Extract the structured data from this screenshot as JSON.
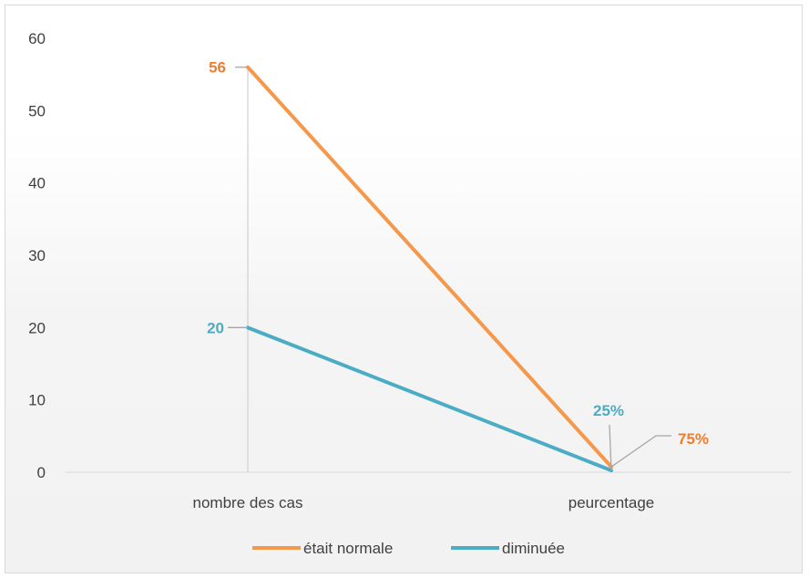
{
  "chart_data": {
    "type": "line",
    "title": "",
    "xlabel": "",
    "ylabel": "",
    "categories": [
      "nombre des cas",
      "peurcentage"
    ],
    "ylim": [
      0,
      60
    ],
    "yticks": [
      0,
      10,
      20,
      30,
      40,
      50,
      60
    ],
    "grid": false,
    "legend_position": "bottom",
    "series": [
      {
        "name": "était normale",
        "values": [
          56,
          0.75
        ],
        "labels": [
          "56",
          "75%"
        ],
        "color": "#f5984a",
        "label_color": "#ed7d31"
      },
      {
        "name": "diminuée",
        "values": [
          20,
          0.25
        ],
        "labels": [
          "20",
          "25%"
        ],
        "color": "#4bacc6",
        "label_color": "#4bacc6"
      }
    ]
  }
}
